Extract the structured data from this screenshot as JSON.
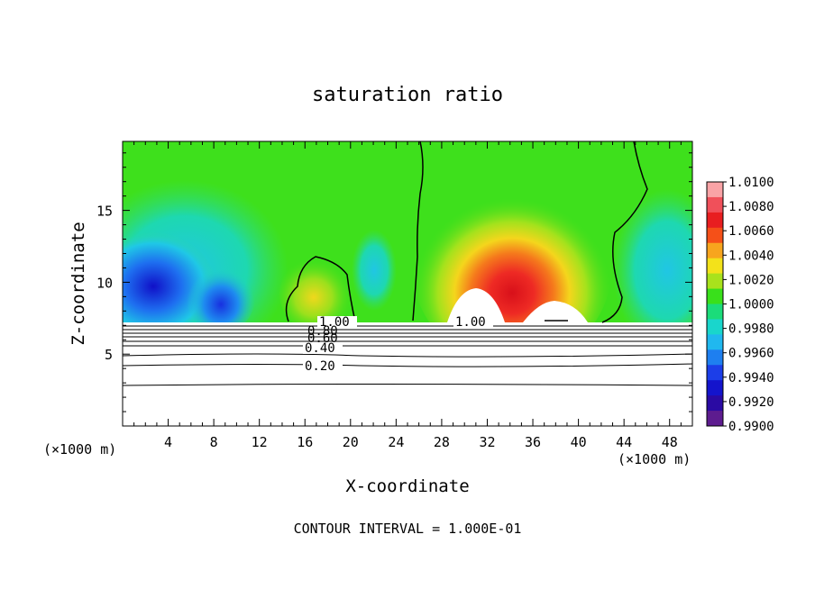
{
  "chart_data": {
    "type": "heatmap",
    "title": "saturation ratio",
    "xlabel": "X-coordinate",
    "ylabel": "Z-coordinate",
    "x_unit": "(×1000 m)",
    "x_unit_right": "(×1000 m)",
    "xlim": [
      0,
      50
    ],
    "ylim": [
      0,
      19.8
    ],
    "x_ticks": [
      4,
      8,
      12,
      16,
      20,
      24,
      28,
      32,
      36,
      40,
      44,
      48
    ],
    "y_ticks": [
      5,
      10,
      15
    ],
    "colorbar": {
      "labels": [
        "1.0100",
        "1.0080",
        "1.0060",
        "1.0040",
        "1.0020",
        "1.0000",
        "0.9980",
        "0.9960",
        "0.9940",
        "0.9920",
        "0.9900"
      ],
      "colors": [
        "#f9a3a6",
        "#f0505a",
        "#e81e20",
        "#f55018",
        "#f7a51e",
        "#f3e21a",
        "#a8e21c",
        "#39e01b",
        "#1bdc7a",
        "#19d6cc",
        "#20b8ef",
        "#1e7ff0",
        "#1c3ee8",
        "#1414cc",
        "#2a0aa3",
        "#5d1c8f"
      ]
    },
    "contour_lines": [
      {
        "label": "1.00"
      },
      {
        "label": "0.80"
      },
      {
        "label": "0.60"
      },
      {
        "label": "0.40"
      },
      {
        "label": "0.20"
      }
    ],
    "footer": "CONTOUR INTERVAL = 1.000E-01"
  }
}
